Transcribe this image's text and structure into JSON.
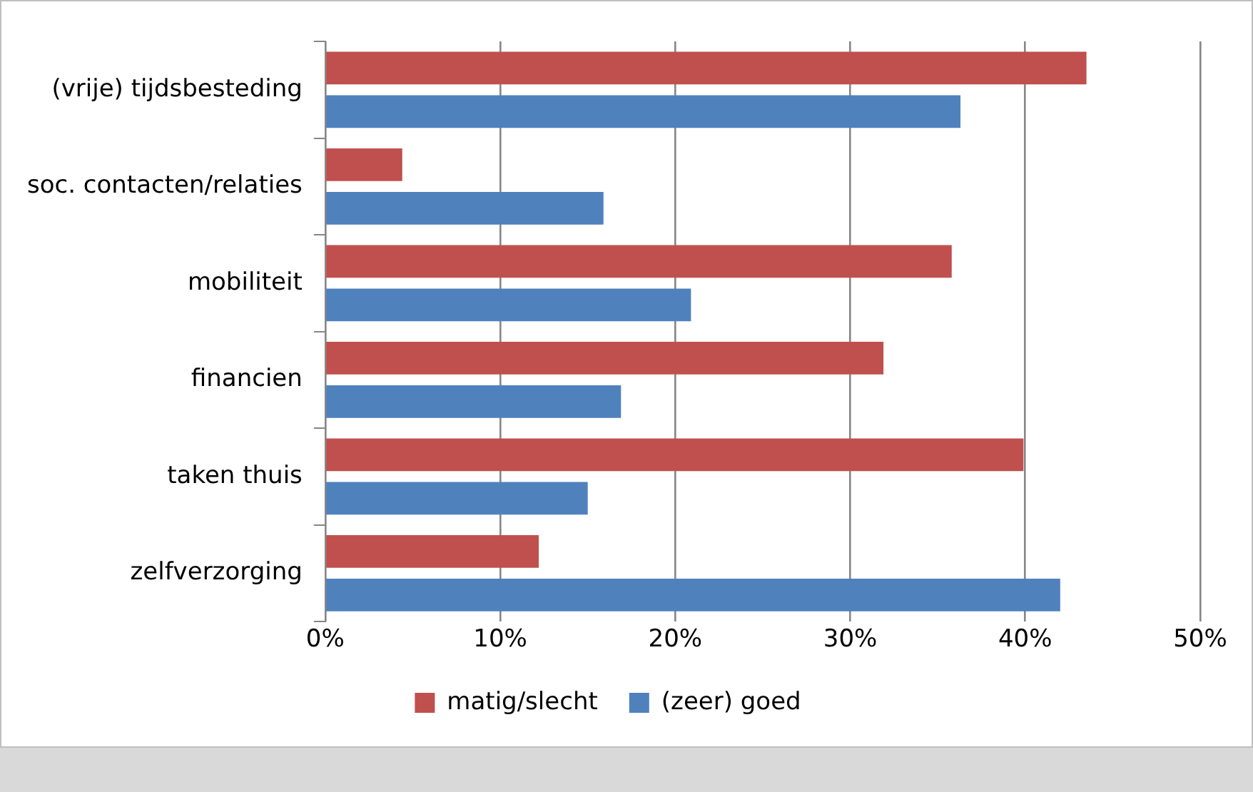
{
  "chart_data": {
    "type": "bar",
    "orientation": "horizontal",
    "categories": [
      "(vrije) tijdsbesteding",
      "soc. contacten/relaties",
      "mobiliteit",
      "financien",
      "taken thuis",
      "zelfverzorging"
    ],
    "series": [
      {
        "name": "matig/slecht",
        "color": "#c0504d",
        "values": [
          43.5,
          4.4,
          35.8,
          31.9,
          39.9,
          12.2
        ]
      },
      {
        "name": "(zeer) goed",
        "color": "#4f81bd",
        "values": [
          36.3,
          15.9,
          20.9,
          16.9,
          15.0,
          42.0
        ]
      }
    ],
    "xlim": [
      0,
      50
    ],
    "xticks": [
      {
        "value": 0,
        "label": "0%"
      },
      {
        "value": 10,
        "label": "10%"
      },
      {
        "value": 20,
        "label": "20%"
      },
      {
        "value": 30,
        "label": "30%"
      },
      {
        "value": 40,
        "label": "40%"
      },
      {
        "value": 50,
        "label": "50%"
      }
    ],
    "grid": "x",
    "legend": "bottom"
  }
}
